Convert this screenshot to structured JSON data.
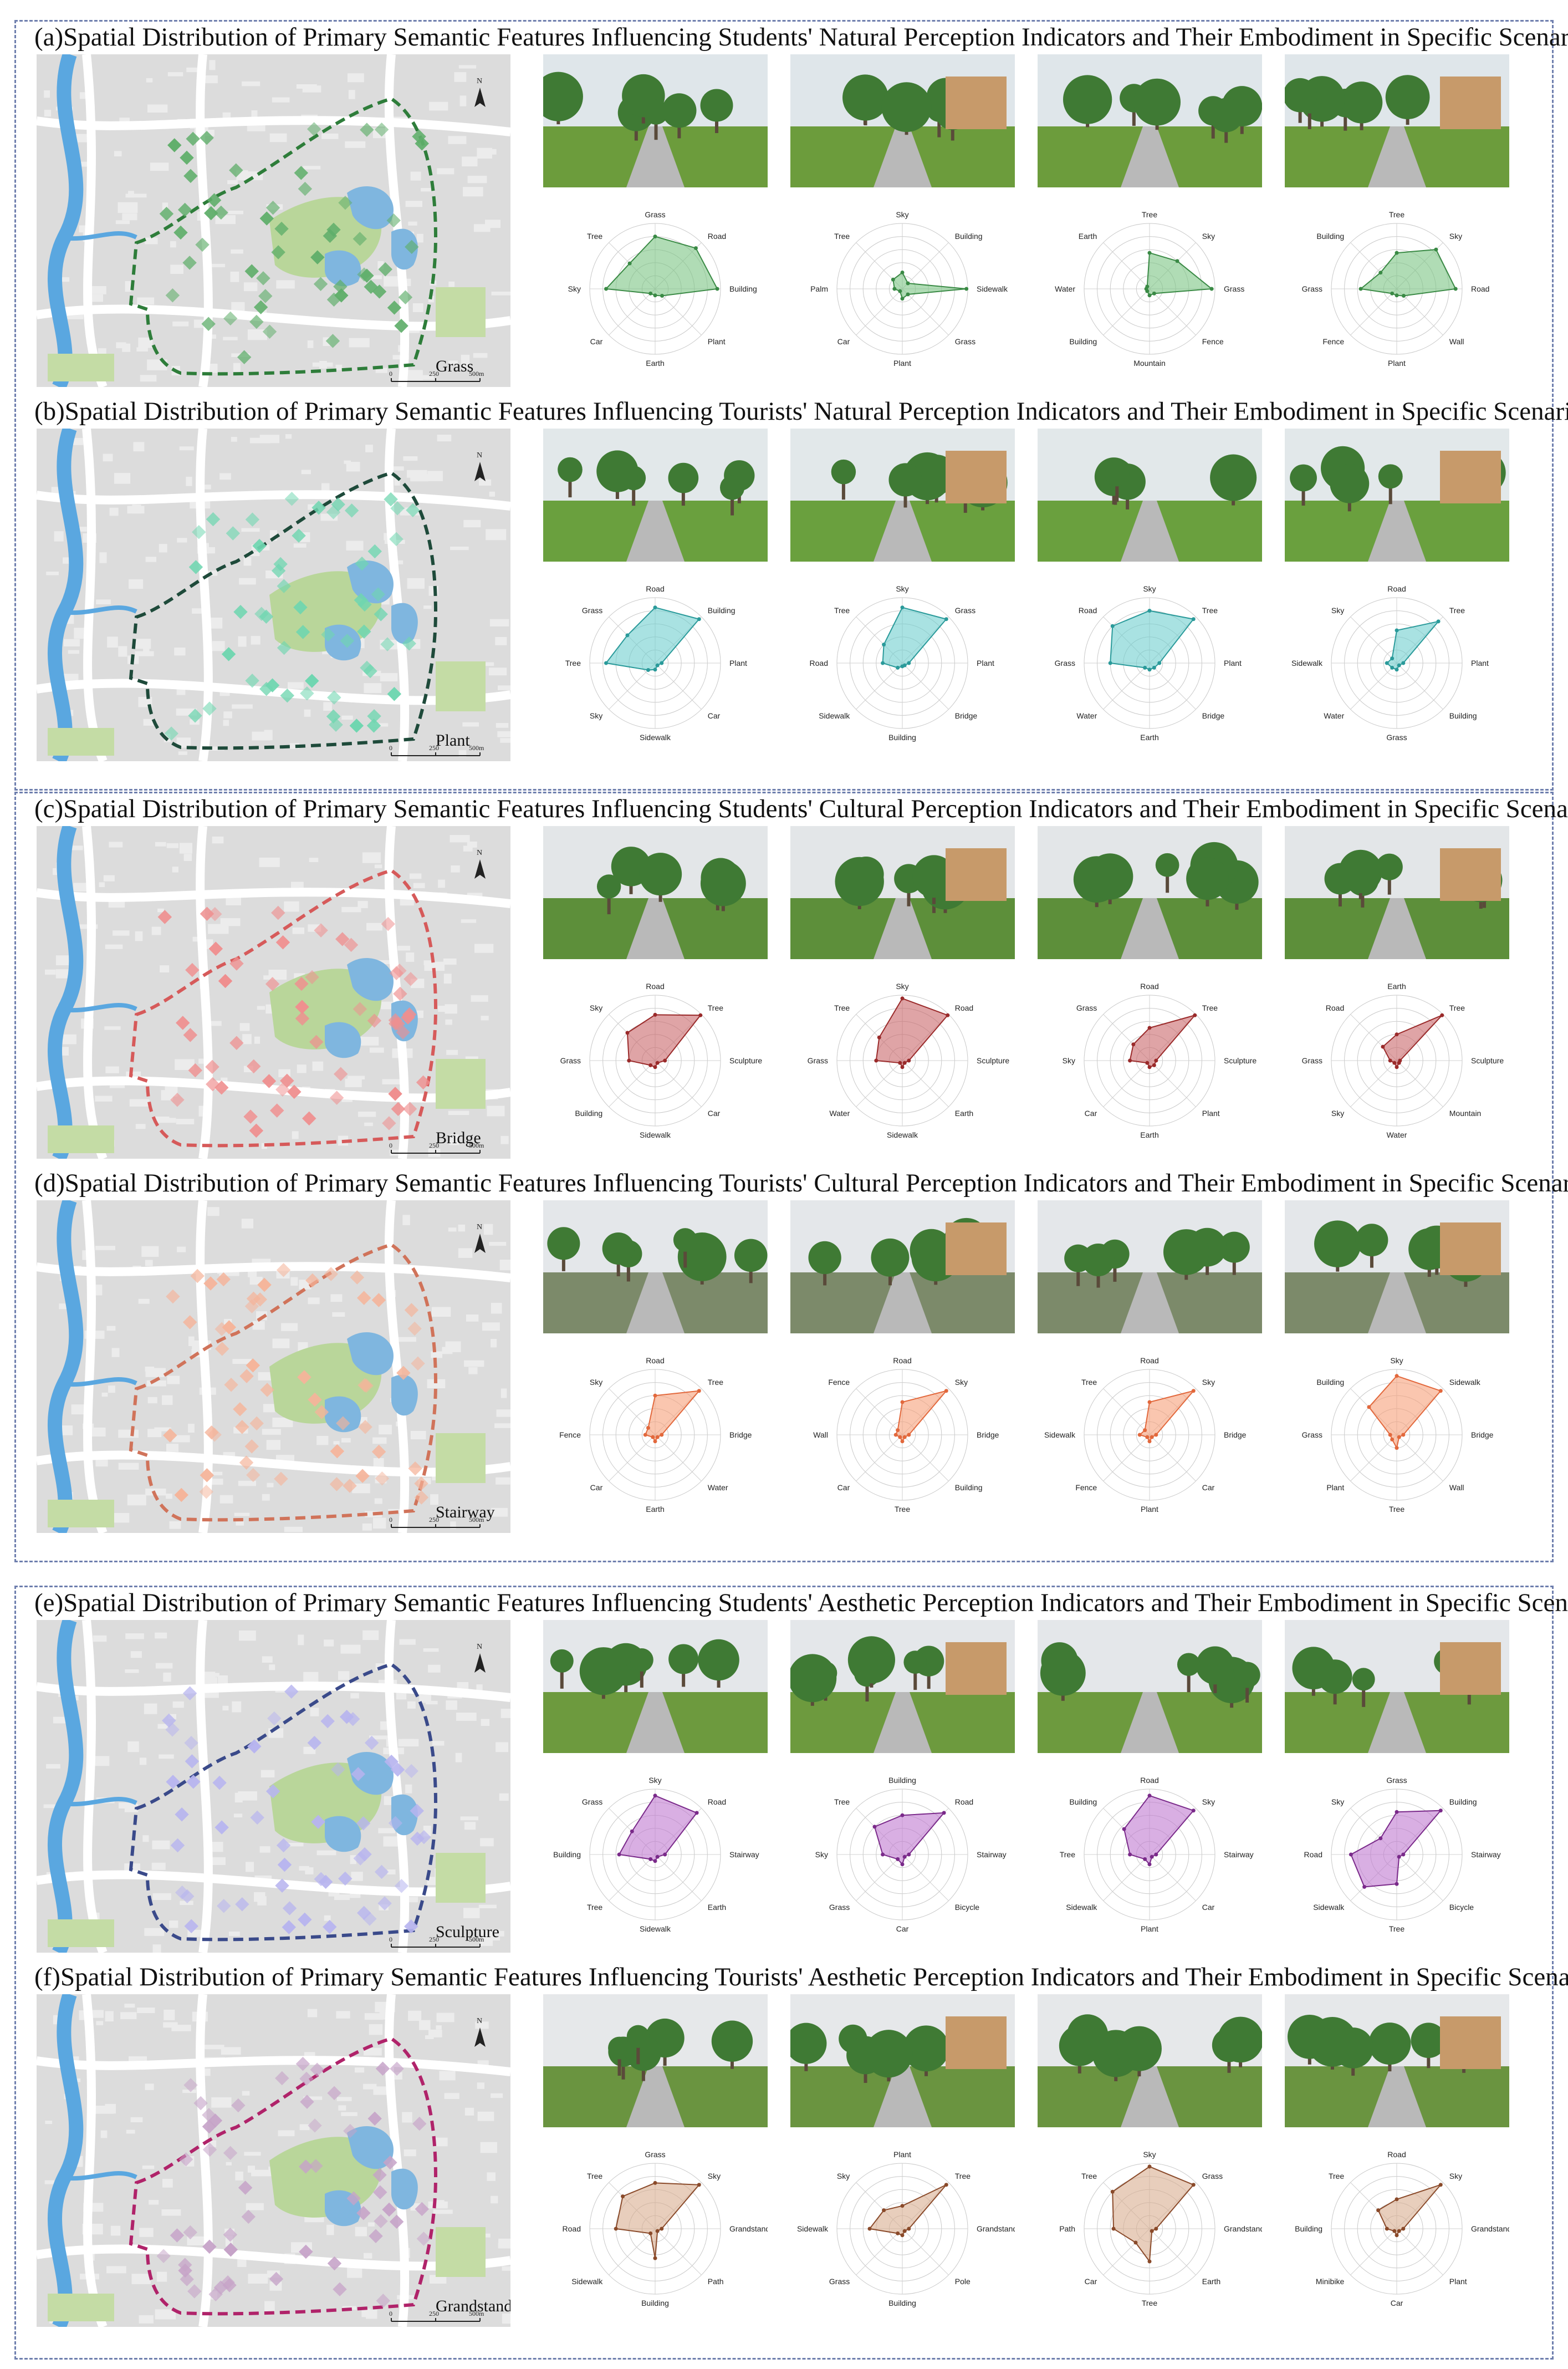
{
  "sections": [
    {
      "title": "(a)Spatial Distribution of Primary Semantic Features Influencing Students' Natural Perception Indicators and Their Embodiment in Specific Scenarios",
      "map_label": "Grass",
      "scale": [
        "0",
        "250",
        "500m"
      ],
      "colors": {
        "stroke": "#3a8a45",
        "fill": "#7cc484",
        "boundary": "#2e7d3a",
        "marker": "#5fae6a",
        "photo_sky": "#dfe6ea",
        "photo_ground": "#6c9c3c"
      },
      "radars": [
        {
          "labels": [
            "Grass",
            "Road",
            "Building",
            "Plant",
            "Earth",
            "Car",
            "Sky",
            "Tree"
          ],
          "values": [
            0.8,
            0.88,
            0.95,
            0.15,
            0.1,
            0.1,
            0.75,
            0.55
          ]
        },
        {
          "labels": [
            "Sky",
            "Building",
            "Sidewalk",
            "Grass",
            "Plant",
            "Car",
            "Palm",
            "Tree"
          ],
          "values": [
            0.25,
            0.12,
            0.98,
            0.12,
            0.15,
            0.05,
            0.12,
            0.2
          ]
        },
        {
          "labels": [
            "Tree",
            "Sky",
            "Grass",
            "Fence",
            "Mountain",
            "Building",
            "Water",
            "Earth"
          ],
          "values": [
            0.55,
            0.6,
            0.95,
            0.1,
            0.1,
            0.05,
            0.05,
            0.05
          ]
        },
        {
          "labels": [
            "Tree",
            "Sky",
            "Road",
            "Wall",
            "Plant",
            "Fence",
            "Grass",
            "Building"
          ],
          "values": [
            0.55,
            0.85,
            0.9,
            0.15,
            0.1,
            0.1,
            0.55,
            0.35
          ]
        }
      ]
    },
    {
      "title": "(b)Spatial Distribution of Primary Semantic Features Influencing Tourists' Natural Perception Indicators and Their Embodiment in Specific Scenarios",
      "map_label": "Plant",
      "scale": [
        "0",
        "250",
        "500m"
      ],
      "colors": {
        "stroke": "#2a9a9a",
        "fill": "#6fcfcf",
        "boundary": "#1e4a3a",
        "marker": "#6fd6b0",
        "photo_sky": "#e2e8ea",
        "photo_ground": "#6aa03e"
      },
      "radars": [
        {
          "labels": [
            "Road",
            "Building",
            "Plant",
            "Car",
            "Sidewalk",
            "Sky",
            "Tree",
            "Grass"
          ],
          "values": [
            0.85,
            0.95,
            0.1,
            0.05,
            0.1,
            0.15,
            0.75,
            0.6
          ]
        },
        {
          "labels": [
            "Sky",
            "Grass",
            "Plant",
            "Bridge",
            "Building",
            "Sidewalk",
            "Road",
            "Tree"
          ],
          "values": [
            0.85,
            0.95,
            0.1,
            0.05,
            0.05,
            0.1,
            0.3,
            0.4
          ]
        },
        {
          "labels": [
            "Sky",
            "Tree",
            "Plant",
            "Bridge",
            "Earth",
            "Water",
            "Grass",
            "Road"
          ],
          "values": [
            0.8,
            0.95,
            0.15,
            0.1,
            0.1,
            0.1,
            0.6,
            0.8
          ]
        },
        {
          "labels": [
            "Road",
            "Tree",
            "Plant",
            "Building",
            "Grass",
            "Water",
            "Sidewalk",
            "Sky"
          ],
          "values": [
            0.5,
            0.9,
            0.1,
            0.05,
            0.1,
            0.1,
            0.15,
            0.1
          ]
        }
      ]
    },
    {
      "title": "(c)Spatial Distribution of Primary Semantic Features Influencing Students' Cultural Perception Indicators and Their Embodiment in Specific Scenarios",
      "map_label": "Bridge",
      "scale": [
        "0",
        "250",
        "500m"
      ],
      "colors": {
        "stroke": "#9a2a2a",
        "fill": "#c9676b",
        "boundary": "#d65a5a",
        "marker": "#ef8f8f",
        "photo_sky": "#e3e6e8",
        "photo_ground": "#5d8f3a"
      },
      "radars": [
        {
          "labels": [
            "Road",
            "Tree",
            "Sculpture",
            "Car",
            "Sidewalk",
            "Building",
            "Grass",
            "Sky"
          ],
          "values": [
            0.7,
            0.98,
            0.15,
            0.05,
            0.1,
            0.1,
            0.4,
            0.6
          ]
        },
        {
          "labels": [
            "Sky",
            "Road",
            "Sculpture",
            "Earth",
            "Sidewalk",
            "Water",
            "Grass",
            "Tree"
          ],
          "values": [
            0.95,
            0.98,
            0.1,
            0.05,
            0.1,
            0.05,
            0.4,
            0.5
          ]
        },
        {
          "labels": [
            "Road",
            "Tree",
            "Sculpture",
            "Plant",
            "Earth",
            "Car",
            "Sky",
            "Grass"
          ],
          "values": [
            0.5,
            0.98,
            0.1,
            0.1,
            0.1,
            0.05,
            0.3,
            0.35
          ]
        },
        {
          "labels": [
            "Earth",
            "Tree",
            "Sculpture",
            "Mountain",
            "Water",
            "Sky",
            "Grass",
            "Road"
          ],
          "values": [
            0.4,
            0.98,
            0.05,
            0.05,
            0.1,
            0.05,
            0.1,
            0.3
          ]
        }
      ]
    },
    {
      "title": "(d)Spatial Distribution of Primary Semantic Features Influencing Tourists' Cultural Perception Indicators and Their Embodiment in Specific Scenarios",
      "map_label": "Stairway",
      "scale": [
        "0",
        "250",
        "500m"
      ],
      "colors": {
        "stroke": "#e2683c",
        "fill": "#f7a07a",
        "boundary": "#d0735a",
        "marker": "#f5b49a",
        "photo_sky": "#e4e7ea",
        "photo_ground": "#7c8a6a"
      },
      "radars": [
        {
          "labels": [
            "Road",
            "Tree",
            "Bridge",
            "Water",
            "Earth",
            "Car",
            "Fence",
            "Sky"
          ],
          "values": [
            0.6,
            0.95,
            0.1,
            0.05,
            0.1,
            0.05,
            0.15,
            0.15
          ]
        },
        {
          "labels": [
            "Road",
            "Sky",
            "Bridge",
            "Building",
            "Tree",
            "Car",
            "Wall",
            "Fence"
          ],
          "values": [
            0.5,
            0.95,
            0.1,
            0.05,
            0.1,
            0.05,
            0.1,
            0.1
          ]
        },
        {
          "labels": [
            "Road",
            "Sky",
            "Bridge",
            "Car",
            "Plant",
            "Fence",
            "Sidewalk",
            "Tree"
          ],
          "values": [
            0.5,
            0.95,
            0.1,
            0.05,
            0.1,
            0.05,
            0.15,
            0.1
          ]
        },
        {
          "labels": [
            "Sky",
            "Sidewalk",
            "Bridge",
            "Wall",
            "Tree",
            "Plant",
            "Grass",
            "Building"
          ],
          "values": [
            0.9,
            0.95,
            0.1,
            0.05,
            0.2,
            0.1,
            0.1,
            0.6
          ]
        }
      ]
    },
    {
      "title": "(e)Spatial Distribution of Primary Semantic Features Influencing Students' Aesthetic Perception Indicators and Their Embodiment in Specific Scenarios",
      "map_label": "Sculpture",
      "scale": [
        "0",
        "250",
        "500m"
      ],
      "colors": {
        "stroke": "#7a2a8a",
        "fill": "#c07ad0",
        "boundary": "#3a4a8a",
        "marker": "#b7b4ef",
        "photo_sky": "#e4e7ea",
        "photo_ground": "#6d9a3e"
      },
      "radars": [
        {
          "labels": [
            "Sky",
            "Road",
            "Stairway",
            "Earth",
            "Sidewalk",
            "Tree",
            "Building",
            "Grass"
          ],
          "values": [
            0.9,
            0.9,
            0.15,
            0.05,
            0.1,
            0.1,
            0.55,
            0.5
          ]
        },
        {
          "labels": [
            "Building",
            "Road",
            "Stairway",
            "Bicycle",
            "Car",
            "Grass",
            "Sky",
            "Tree"
          ],
          "values": [
            0.6,
            0.9,
            0.1,
            0.05,
            0.15,
            0.1,
            0.3,
            0.6
          ]
        },
        {
          "labels": [
            "Road",
            "Sky",
            "Stairway",
            "Car",
            "Plant",
            "Sidewalk",
            "Tree",
            "Building"
          ],
          "values": [
            0.9,
            0.95,
            0.1,
            0.05,
            0.15,
            0.1,
            0.3,
            0.55
          ]
        },
        {
          "labels": [
            "Grass",
            "Building",
            "Stairway",
            "Bicycle",
            "Tree",
            "Sidewalk",
            "Road",
            "Sky"
          ],
          "values": [
            0.65,
            0.95,
            0.1,
            0.05,
            0.45,
            0.7,
            0.7,
            0.35
          ]
        }
      ]
    },
    {
      "title": "(f)Spatial Distribution of Primary Semantic Features Influencing Tourists' Aesthetic Perception Indicators and Their Embodiment in Specific Scenarios",
      "map_label": "Grandstand",
      "scale": [
        "0",
        "250",
        "500m"
      ],
      "colors": {
        "stroke": "#8a4a2a",
        "fill": "#d9ad90",
        "boundary": "#b0236a",
        "marker": "#c6a3c8",
        "photo_sky": "#e6e8ea",
        "photo_ground": "#6a9440"
      },
      "radars": [
        {
          "labels": [
            "Grass",
            "Sky",
            "Grandstand",
            "Path",
            "Building",
            "Sidewalk",
            "Road",
            "Tree"
          ],
          "values": [
            0.7,
            0.95,
            0.1,
            0.05,
            0.45,
            0.1,
            0.6,
            0.7
          ]
        },
        {
          "labels": [
            "Plant",
            "Tree",
            "Grandstand",
            "Pole",
            "Building",
            "Grass",
            "Sidewalk",
            "Sky"
          ],
          "values": [
            0.35,
            0.95,
            0.1,
            0.05,
            0.1,
            0.1,
            0.5,
            0.4
          ]
        },
        {
          "labels": [
            "Sky",
            "Grass",
            "Grandstand",
            "Earth",
            "Tree",
            "Car",
            "Path",
            "Tree"
          ],
          "values": [
            0.95,
            0.95,
            0.1,
            0.05,
            0.5,
            0.3,
            0.55,
            0.8
          ]
        },
        {
          "labels": [
            "Road",
            "Sky",
            "Grandstand",
            "Plant",
            "Car",
            "Minibike",
            "Building",
            "Tree"
          ],
          "values": [
            0.45,
            0.95,
            0.1,
            0.05,
            0.1,
            0.05,
            0.15,
            0.4
          ]
        }
      ]
    }
  ]
}
